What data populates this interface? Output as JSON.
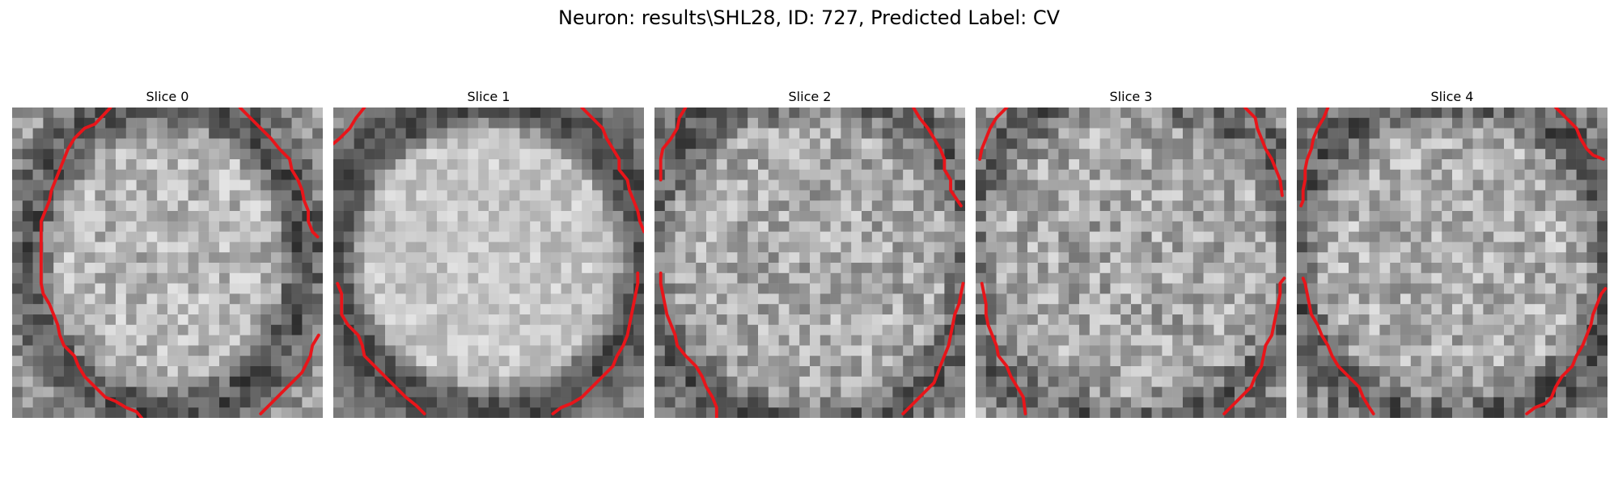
{
  "figure": {
    "title": "Neuron: results\\SHL28, ID: 727, Predicted Label: CV"
  },
  "panels": [
    {
      "title": "Slice 0"
    },
    {
      "title": "Slice 1"
    },
    {
      "title": "Slice 2"
    },
    {
      "title": "Slice 3"
    },
    {
      "title": "Slice 4"
    }
  ],
  "colors": {
    "contour": "#e8151a",
    "background": "#ffffff"
  },
  "image": {
    "colormap": "grayscale",
    "grid": "30x30 pixel patch"
  }
}
